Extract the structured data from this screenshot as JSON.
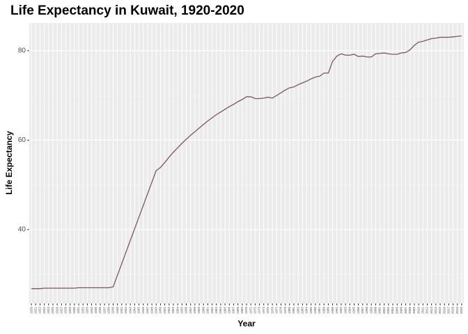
{
  "chart_data": {
    "type": "line",
    "title": "Life Expectancy in Kuwait, 1920-2020",
    "x_label": "Year",
    "y_label": "Life Expectancy",
    "categories": [
      "1920",
      "1921",
      "1922",
      "1923",
      "1924",
      "1925",
      "1926",
      "1927",
      "1928",
      "1929",
      "1930",
      "1931",
      "1932",
      "1933",
      "1934",
      "1935",
      "1936",
      "1937",
      "1938",
      "1939",
      "1940",
      "1941",
      "1942",
      "1943",
      "1944",
      "1945",
      "1946",
      "1947",
      "1948",
      "1949",
      "1950",
      "1951",
      "1952",
      "1953",
      "1954",
      "1955",
      "1956",
      "1957",
      "1958",
      "1959",
      "1960",
      "1961",
      "1962",
      "1963",
      "1964",
      "1965",
      "1966",
      "1967",
      "1968",
      "1969",
      "1970",
      "1971",
      "1972",
      "1973",
      "1974",
      "1975",
      "1976",
      "1977",
      "1978",
      "1979",
      "1980",
      "1981",
      "1982",
      "1983",
      "1984",
      "1985",
      "1986",
      "1987",
      "1988",
      "1989",
      "1990",
      "1991",
      "1992",
      "1993",
      "1994",
      "1995",
      "1996",
      "1997",
      "1998",
      "1999",
      "2000",
      "2001",
      "2002",
      "2003",
      "2004",
      "2005",
      "2006",
      "2007",
      "2008",
      "2009",
      "2010",
      "2011",
      "2012",
      "2013",
      "2014",
      "2015",
      "2016",
      "2017",
      "2018",
      "2019",
      "2020"
    ],
    "values": [
      26.8,
      26.8,
      26.8,
      26.9,
      26.9,
      26.9,
      26.9,
      26.9,
      26.9,
      26.9,
      26.9,
      27.0,
      27.0,
      27.0,
      27.0,
      27.0,
      27.0,
      27.0,
      27.0,
      27.2,
      29.8,
      32.4,
      35.0,
      37.6,
      40.2,
      42.8,
      45.4,
      48.0,
      50.6,
      53.2,
      53.9,
      55.0,
      56.2,
      57.3,
      58.3,
      59.3,
      60.2,
      61.1,
      61.9,
      62.7,
      63.5,
      64.3,
      65.0,
      65.7,
      66.3,
      66.9,
      67.5,
      68.0,
      68.6,
      69.1,
      69.7,
      69.7,
      69.3,
      69.3,
      69.4,
      69.6,
      69.4,
      70.0,
      70.6,
      71.2,
      71.7,
      71.9,
      72.4,
      72.8,
      73.2,
      73.7,
      74.1,
      74.3,
      75.0,
      75.0,
      77.6,
      78.8,
      79.3,
      79.0,
      79.0,
      79.2,
      78.7,
      78.8,
      78.6,
      78.6,
      79.3,
      79.4,
      79.5,
      79.3,
      79.2,
      79.2,
      79.5,
      79.6,
      80.2,
      81.2,
      81.9,
      82.1,
      82.4,
      82.7,
      82.8,
      83.0,
      83.0,
      83.0,
      83.1,
      83.2,
      83.3
    ],
    "color": "#7b5661",
    "ylim": [
      23.5,
      86.2
    ],
    "yticks": [
      40,
      60,
      80
    ],
    "y_minor_ticks": [
      30,
      50,
      70
    ],
    "grid": true
  }
}
